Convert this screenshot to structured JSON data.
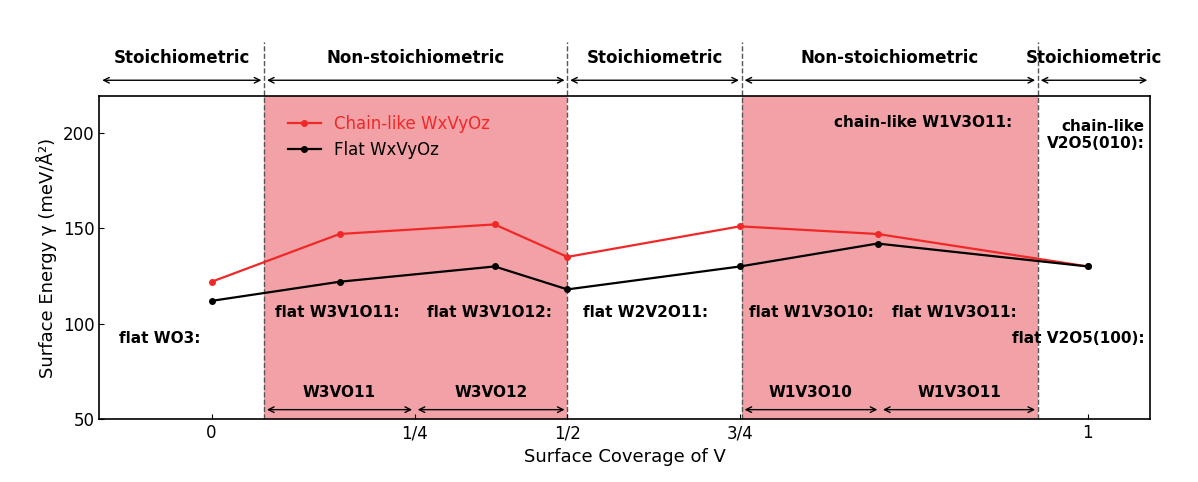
{
  "chart_data": {
    "type": "line",
    "xlabel": "Surface Coverage of V",
    "ylabel": "Surface Energy γ (meV/Å²)",
    "x": [
      0,
      0.146,
      0.323,
      0.406,
      0.603,
      0.76,
      1
    ],
    "series": [
      {
        "name": "Chain-like WxVyOz",
        "color": "#f02828",
        "marker": "o",
        "line_style": "solid",
        "values": [
          122,
          147,
          152,
          135,
          151,
          147,
          130
        ]
      },
      {
        "name": "Flat WxVyOz",
        "color": "#000000",
        "marker": "o",
        "line_style": "solid",
        "values": [
          112,
          122,
          130,
          118,
          130,
          142,
          130
        ]
      }
    ],
    "xlim": [
      -0.128,
      1.071
    ],
    "ylim": [
      50,
      219
    ],
    "xticks": [
      0,
      {
        "value": 0.232,
        "label": "1/4"
      },
      {
        "value": 0.406,
        "label": "1/2"
      },
      {
        "value": 0.603,
        "label": "3/4"
      },
      1
    ],
    "yticks": [
      50,
      100,
      150,
      200
    ],
    "legend": "upper left",
    "regions": [
      {
        "label": "Stoichiometric",
        "start": -0.128,
        "end": 0.06
      },
      {
        "label": "Non-stoichiometric",
        "start": 0.06,
        "end": 0.406,
        "color": "#f2a2a6"
      },
      {
        "label": "Stoichiometric",
        "start": 0.406,
        "end": 0.605
      },
      {
        "label": "Non-stoichiometric",
        "start": 0.605,
        "end": 0.943,
        "color": "#f2a2a6"
      },
      {
        "label": "Stoichiometric",
        "start": 0.943,
        "end": 1.071
      }
    ],
    "spans": [
      {
        "label": "W3VO11",
        "start": 0.06,
        "end": 0.232
      },
      {
        "label": "W3VO12",
        "start": 0.232,
        "end": 0.406
      },
      {
        "label": "W1V3O10",
        "start": 0.605,
        "end": 0.763
      },
      {
        "label": "W1V3O11",
        "start": 0.763,
        "end": 0.943
      }
    ],
    "annotations": [
      "flat WO3:",
      "flat W3V1O11:",
      "flat W3V1O12:",
      "flat W2V2O11:",
      "flat W1V3O10:",
      "flat W1V3O11:",
      "flat V2O5(100):",
      "chain-like W1V3O11:",
      "chain-like\nV2O5(010):"
    ]
  }
}
